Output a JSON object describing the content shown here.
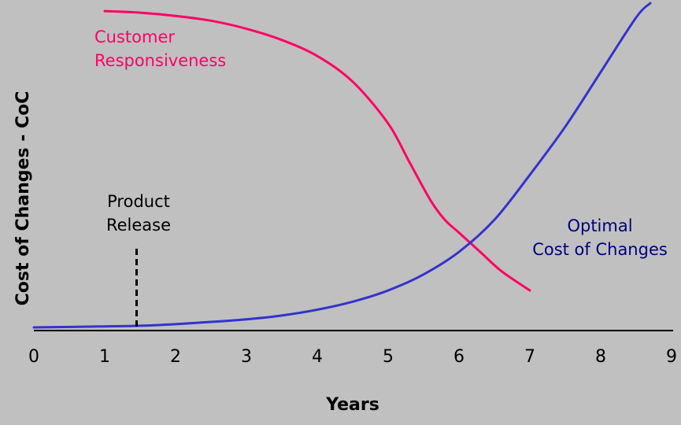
{
  "chart_data": {
    "type": "line",
    "title": "",
    "xlabel": "Years",
    "ylabel": "Cost of Changes - CoC",
    "xlim": [
      0,
      9
    ],
    "ylim": [
      0,
      10
    ],
    "x_ticks": [
      "0",
      "1",
      "2",
      "3",
      "4",
      "5",
      "6",
      "7",
      "8",
      "9"
    ],
    "grid": false,
    "series": [
      {
        "name": "Customer Responsiveness",
        "color": "#ff0066",
        "x": [
          1,
          1.5,
          2,
          2.5,
          3,
          3.5,
          4,
          4.5,
          5,
          5.3,
          5.6,
          5.8,
          6,
          6.3,
          6.6,
          7
        ],
        "y": [
          9.9,
          9.85,
          9.75,
          9.6,
          9.35,
          9.0,
          8.5,
          7.7,
          6.4,
          5.2,
          4.0,
          3.4,
          3.0,
          2.4,
          1.8,
          1.2
        ]
      },
      {
        "name": "Optimal Cost of Changes",
        "color": "#3333cc",
        "x": [
          0,
          1,
          1.5,
          2,
          2.5,
          3,
          3.5,
          4,
          4.5,
          5,
          5.5,
          6,
          6.5,
          7,
          7.5,
          8,
          8.5,
          8.7
        ],
        "y": [
          0.05,
          0.08,
          0.1,
          0.15,
          0.22,
          0.3,
          0.42,
          0.6,
          0.85,
          1.2,
          1.7,
          2.4,
          3.4,
          4.8,
          6.3,
          8.0,
          9.7,
          10.4
        ]
      }
    ],
    "annotations": [
      {
        "text": [
          "Customer",
          "Responsiveness"
        ],
        "color": "#ff0066"
      },
      {
        "text": [
          "Optimal",
          "Cost of Changes"
        ],
        "color": "#000080"
      },
      {
        "text": [
          "Product",
          "Release"
        ],
        "color": "#000000",
        "marker_x": 1.45
      }
    ]
  }
}
